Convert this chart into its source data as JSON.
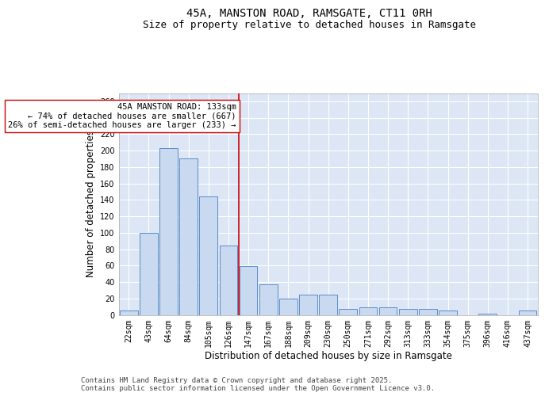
{
  "title1": "45A, MANSTON ROAD, RAMSGATE, CT11 0RH",
  "title2": "Size of property relative to detached houses in Ramsgate",
  "xlabel": "Distribution of detached houses by size in Ramsgate",
  "ylabel": "Number of detached properties",
  "categories": [
    "22sqm",
    "43sqm",
    "64sqm",
    "84sqm",
    "105sqm",
    "126sqm",
    "147sqm",
    "167sqm",
    "188sqm",
    "209sqm",
    "230sqm",
    "250sqm",
    "271sqm",
    "292sqm",
    "313sqm",
    "333sqm",
    "354sqm",
    "375sqm",
    "396sqm",
    "416sqm",
    "437sqm"
  ],
  "values": [
    5,
    100,
    203,
    190,
    144,
    84,
    59,
    37,
    20,
    25,
    25,
    7,
    9,
    9,
    7,
    7,
    5,
    0,
    1,
    0,
    5
  ],
  "bar_color": "#c9d9f0",
  "bar_edge_color": "#5b8cc8",
  "vline_x": 5.5,
  "vline_color": "#cc0000",
  "annotation_line1": "45A MANSTON ROAD: 133sqm",
  "annotation_line2": "← 74% of detached houses are smaller (667)",
  "annotation_line3": "26% of semi-detached houses are larger (233) →",
  "annotation_box_edgecolor": "#cc0000",
  "ylim": [
    0,
    270
  ],
  "yticks": [
    0,
    20,
    40,
    60,
    80,
    100,
    120,
    140,
    160,
    180,
    200,
    220,
    240,
    260
  ],
  "bg_color": "#dce6f5",
  "grid_color": "#ffffff",
  "footer_text": "Contains HM Land Registry data © Crown copyright and database right 2025.\nContains public sector information licensed under the Open Government Licence v3.0.",
  "title_fontsize": 10,
  "subtitle_fontsize": 9,
  "axis_label_fontsize": 8.5,
  "tick_fontsize": 7,
  "annotation_fontsize": 7.5,
  "footer_fontsize": 6.5
}
